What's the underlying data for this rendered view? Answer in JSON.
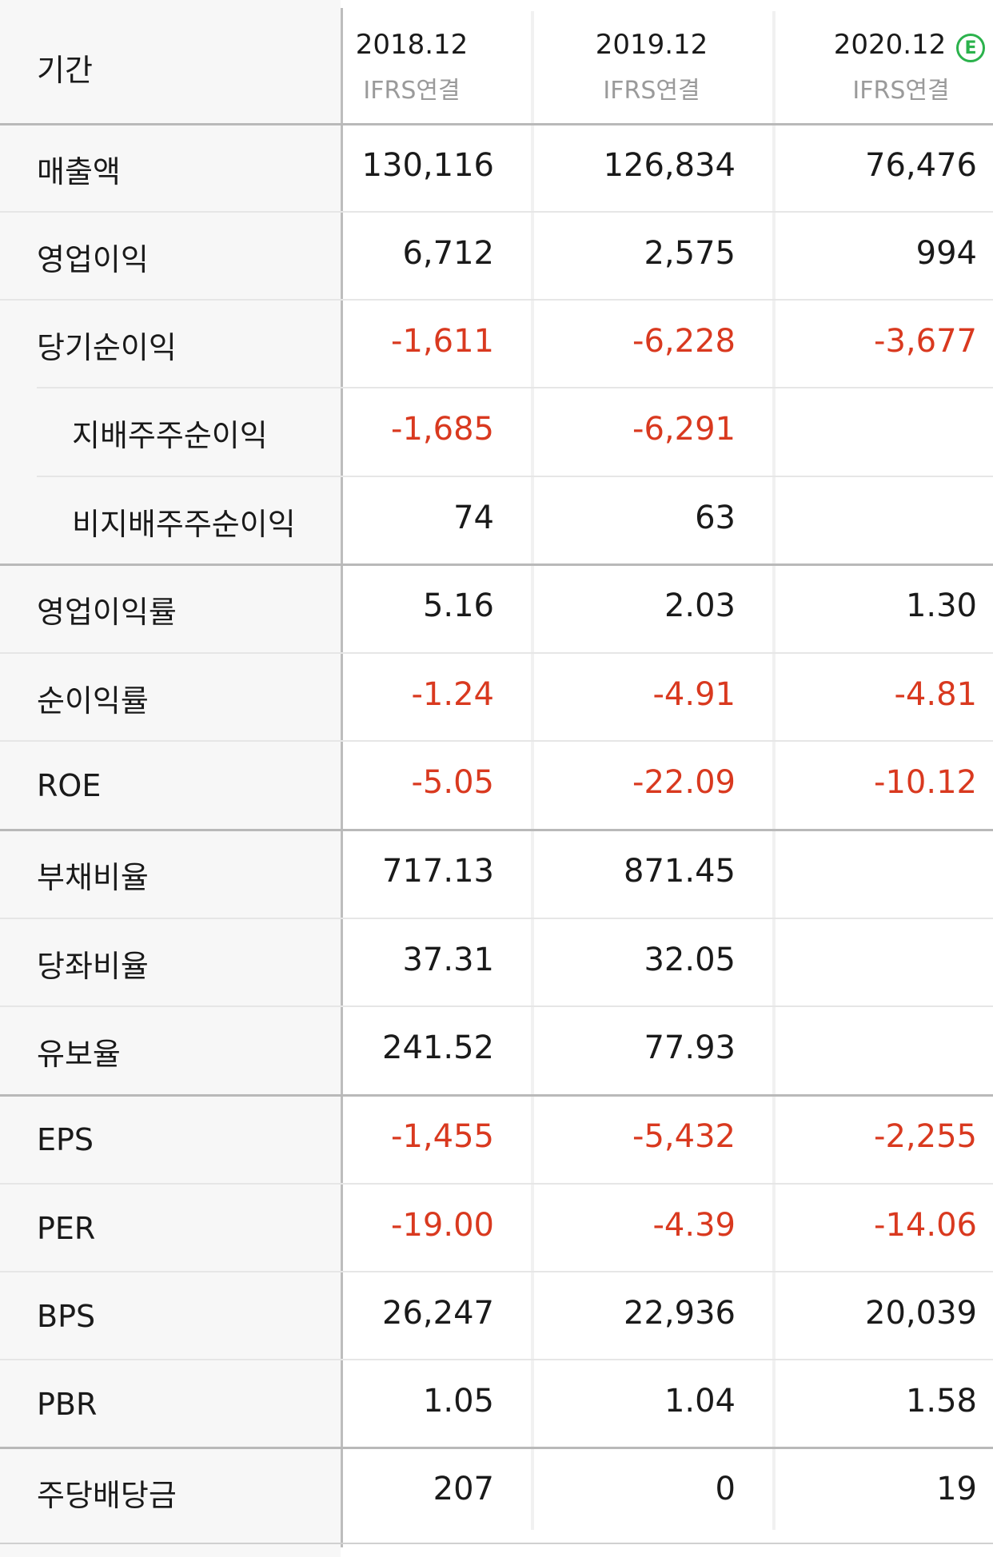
{
  "header": {
    "label": "기간",
    "columns": [
      {
        "year": "2018.12",
        "basis": "IFRS연결",
        "estimate": false
      },
      {
        "year": "2019.12",
        "basis": "IFRS연결",
        "estimate": false
      },
      {
        "year": "2020.12",
        "basis": "IFRS연결",
        "estimate": true,
        "estimate_badge": "E"
      }
    ]
  },
  "rows": [
    {
      "label": "매출액",
      "values": [
        "130,116",
        "126,834",
        "76,476"
      ],
      "indent": false
    },
    {
      "label": "영업이익",
      "values": [
        "6,712",
        "2,575",
        "994"
      ],
      "indent": false
    },
    {
      "label": "당기순이익",
      "values": [
        "-1,611",
        "-6,228",
        "-3,677"
      ],
      "indent": false
    },
    {
      "label": "지배주주순이익",
      "values": [
        "-1,685",
        "-6,291",
        ""
      ],
      "indent": true
    },
    {
      "label": "비지배주주순이익",
      "values": [
        "74",
        "63",
        ""
      ],
      "indent": true
    },
    {
      "label": "영업이익률",
      "values": [
        "5.16",
        "2.03",
        "1.30"
      ],
      "indent": false
    },
    {
      "label": "순이익률",
      "values": [
        "-1.24",
        "-4.91",
        "-4.81"
      ],
      "indent": false
    },
    {
      "label": "ROE",
      "values": [
        "-5.05",
        "-22.09",
        "-10.12"
      ],
      "indent": false
    },
    {
      "label": "부채비율",
      "values": [
        "717.13",
        "871.45",
        ""
      ],
      "indent": false
    },
    {
      "label": "당좌비율",
      "values": [
        "37.31",
        "32.05",
        ""
      ],
      "indent": false
    },
    {
      "label": "유보율",
      "values": [
        "241.52",
        "77.93",
        ""
      ],
      "indent": false
    },
    {
      "label": "EPS",
      "values": [
        "-1,455",
        "-5,432",
        "-2,255"
      ],
      "indent": false
    },
    {
      "label": "PER",
      "values": [
        "-19.00",
        "-4.39",
        "-14.06"
      ],
      "indent": false
    },
    {
      "label": "BPS",
      "values": [
        "26,247",
        "22,936",
        "20,039"
      ],
      "indent": false
    },
    {
      "label": "PBR",
      "values": [
        "1.05",
        "1.04",
        "1.58"
      ],
      "indent": false
    },
    {
      "label": "주당배당금",
      "values": [
        "207",
        "0",
        "19"
      ],
      "indent": false
    }
  ],
  "colors": {
    "negative": "#d9391f",
    "estimate_badge": "#2bb24c",
    "label_background": "#f7f7f7"
  }
}
